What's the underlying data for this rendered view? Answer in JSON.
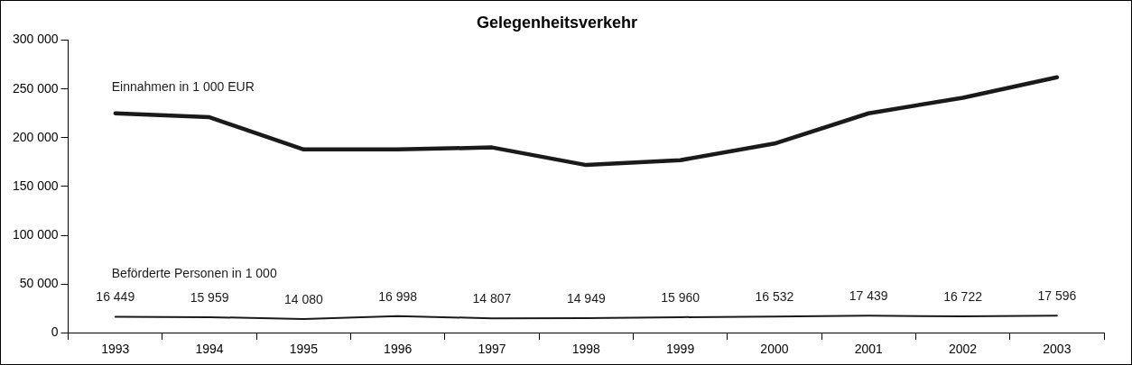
{
  "chart_data": {
    "type": "line",
    "title": "Gelegenheitsverkehr",
    "categories": [
      "1993",
      "1994",
      "1995",
      "1996",
      "1997",
      "1998",
      "1999",
      "2000",
      "2001",
      "2002",
      "2003"
    ],
    "series": [
      {
        "name": "Einnahmen in 1 000 EUR",
        "color": "#1a1a1a",
        "values": [
          225000,
          221000,
          188000,
          188000,
          190000,
          172000,
          177000,
          194000,
          225000,
          241000,
          262000
        ]
      },
      {
        "name": "Beförderte Personen in 1 000",
        "color": "#1a1a1a",
        "values": [
          16449,
          15959,
          14080,
          16998,
          14807,
          14949,
          15960,
          16532,
          17439,
          16722,
          17596
        ],
        "value_labels": [
          "16 449",
          "15 959",
          "14 080",
          "16 998",
          "14 807",
          "14 949",
          "15 960",
          "16 532",
          "17 439",
          "16 722",
          "17 596"
        ]
      }
    ],
    "ylim": [
      0,
      300000
    ],
    "yticks": [
      {
        "value": 0,
        "label": "0"
      },
      {
        "value": 50000,
        "label": "50 000"
      },
      {
        "value": 100000,
        "label": "100 000"
      },
      {
        "value": 150000,
        "label": "150 000"
      },
      {
        "value": 200000,
        "label": "200 000"
      },
      {
        "value": 250000,
        "label": "250 000"
      },
      {
        "value": 300000,
        "label": "300 000"
      }
    ],
    "grid": false,
    "legend": false,
    "marker": "none",
    "line_style": "solid"
  }
}
